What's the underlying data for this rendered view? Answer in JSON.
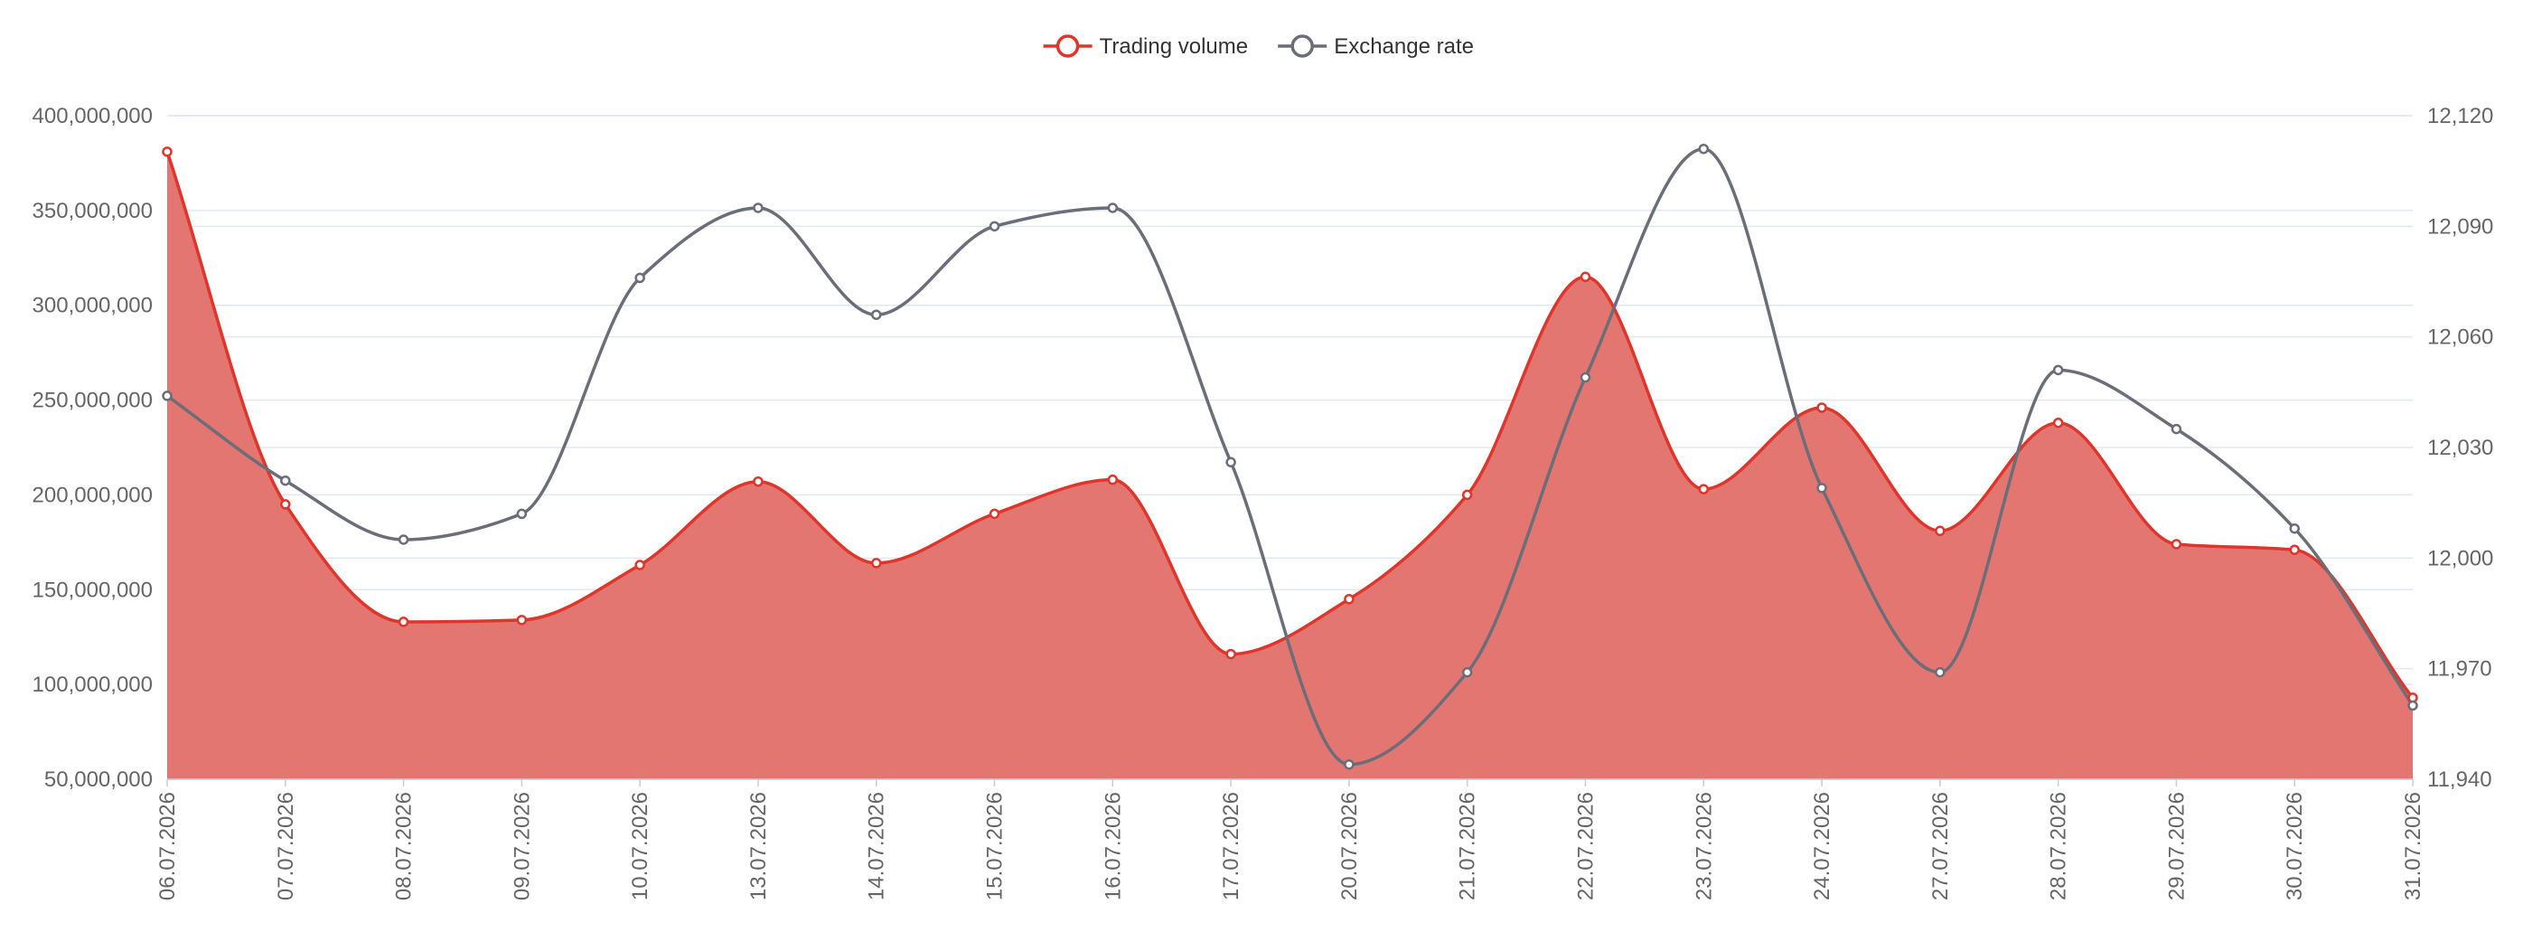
{
  "chart_data": {
    "type": "line",
    "title": "",
    "legend": {
      "position": "top-center",
      "items": [
        {
          "label": "Trading volume",
          "color": "#e0352b",
          "icon": "circle-line-icon"
        },
        {
          "label": "Exchange rate",
          "color": "#6b6e78",
          "icon": "circle-line-icon"
        }
      ]
    },
    "x": [
      "06.07.2026",
      "07.07.2026",
      "08.07.2026",
      "09.07.2026",
      "10.07.2026",
      "13.07.2026",
      "14.07.2026",
      "15.07.2026",
      "16.07.2026",
      "17.07.2026",
      "20.07.2026",
      "21.07.2026",
      "22.07.2026",
      "23.07.2026",
      "24.07.2026",
      "27.07.2026",
      "28.07.2026",
      "29.07.2026",
      "30.07.2026",
      "31.07.2026"
    ],
    "y_left": {
      "min": 50000000,
      "max": 400000000,
      "ticks": [
        "400,000,000",
        "350,000,000",
        "300,000,000",
        "250,000,000",
        "200,000,000",
        "150,000,000",
        "100,000,000",
        "50,000,000"
      ],
      "tick_values": [
        400000000,
        350000000,
        300000000,
        250000000,
        200000000,
        150000000,
        100000000,
        50000000
      ]
    },
    "y_right": {
      "min": 11940,
      "max": 12120,
      "ticks": [
        "12,120",
        "12,090",
        "12,060",
        "12,030",
        "12,000",
        "11,970",
        "11,940"
      ],
      "tick_values": [
        12120,
        12090,
        12060,
        12030,
        12000,
        11970,
        11940
      ]
    },
    "grid": true,
    "series": [
      {
        "name": "Trading volume",
        "axis": "left",
        "style": "area",
        "color": "#e0352b",
        "fill": "#e37670",
        "values": [
          381000000,
          195000000,
          133000000,
          134000000,
          163000000,
          207000000,
          164000000,
          190000000,
          208000000,
          116000000,
          145000000,
          200000000,
          315000000,
          203000000,
          246000000,
          181000000,
          238000000,
          174000000,
          171000000,
          93000000
        ]
      },
      {
        "name": "Exchange rate",
        "axis": "right",
        "style": "line",
        "color": "#6b6e78",
        "values": [
          12044,
          12021,
          12005,
          12012,
          12076,
          12095,
          12066,
          12090,
          12095,
          12026,
          11944,
          11969,
          12049,
          12111,
          12019,
          11969,
          12051,
          12035,
          12008,
          11960
        ]
      }
    ]
  }
}
